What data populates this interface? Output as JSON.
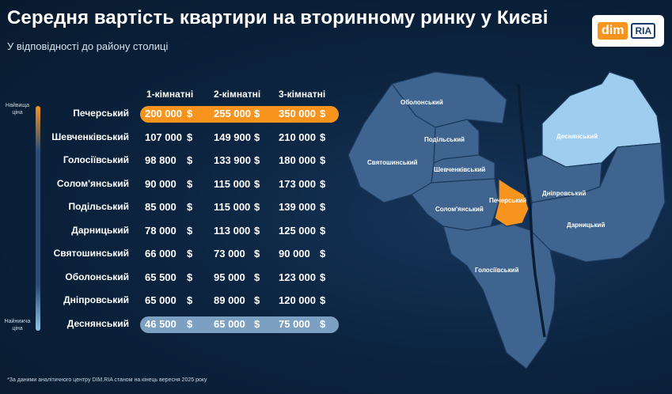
{
  "title": "Середня вартість квартири на вторинному ринку у Києві",
  "subtitle": "У відповідності до району столиці",
  "logo": {
    "dim": "dim",
    "ria": "RIA"
  },
  "colors": {
    "accent": "#f7941d",
    "highlight_low": "#8fb6d8",
    "map_base": "#3f6490",
    "map_light": "#9fcdf0"
  },
  "scale": {
    "top_label": "Найвища ціна",
    "bottom_label": "Найнижча ціна"
  },
  "currency": "$",
  "footnote": "*За даними аналітичного центру DIM.RIA станом на кінець вересня 2025 року",
  "chart_data": {
    "type": "table",
    "title": "Середня вартість квартири на вторинному ринку у Києві",
    "columns": [
      "1-кімнатні",
      "2-кімнатні",
      "3-кімнатні"
    ],
    "unit": "$",
    "rows": [
      {
        "district": "Печерський",
        "values": [
          "200 000",
          "255 000",
          "350 000"
        ]
      },
      {
        "district": "Шевченківський",
        "values": [
          "107 000",
          "149 900",
          "210 000"
        ]
      },
      {
        "district": "Голосіївський",
        "values": [
          "98 800",
          "133 900",
          "180 000"
        ]
      },
      {
        "district": "Солом'янський",
        "values": [
          "90 000",
          "115 000",
          "173 000"
        ]
      },
      {
        "district": "Подільський",
        "values": [
          "85 000",
          "115 000",
          "139 000"
        ]
      },
      {
        "district": "Дарницький",
        "values": [
          "78 000",
          "113 000",
          "125 000"
        ]
      },
      {
        "district": "Святошинський",
        "values": [
          "66 000",
          "73 000",
          "90 000"
        ]
      },
      {
        "district": "Оболонський",
        "values": [
          "65 500",
          "95 000",
          "123 000"
        ]
      },
      {
        "district": "Дніпровський",
        "values": [
          "65 000",
          "89 000",
          "120 000"
        ]
      },
      {
        "district": "Деснянський",
        "values": [
          "46 500",
          "65 000",
          "75 000"
        ]
      }
    ]
  },
  "map": {
    "labels": [
      "Оболонський",
      "Подільський",
      "Святошинський",
      "Шевченківський",
      "Солом'янський",
      "Печерський",
      "Деснянський",
      "Дніпровський",
      "Дарницький",
      "Голосіївський"
    ]
  }
}
